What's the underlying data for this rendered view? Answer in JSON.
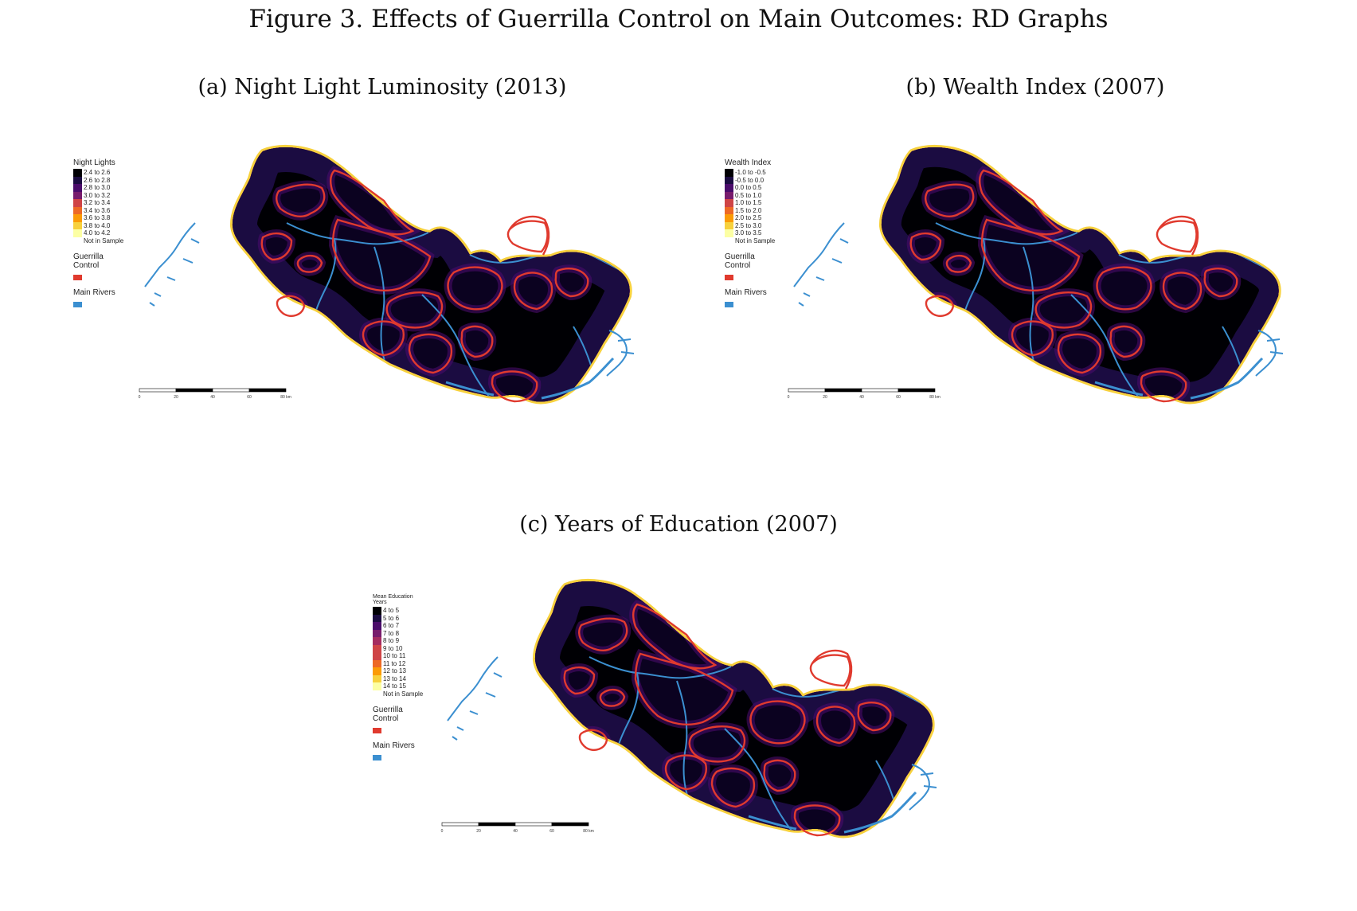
{
  "figure_title": "Figure 3. Effects of Guerrilla Control on Main Outcomes: RD Graphs",
  "colors": {
    "ramp": [
      "#000004",
      "#1b0c41",
      "#4a0c6b",
      "#781c6d",
      "#a52c60",
      "#cf4446",
      "#ed6925",
      "#fb9b06",
      "#f7d13d",
      "#fcffa4"
    ],
    "guerrilla": "#e03a2e",
    "rivers": "#3b8fd0",
    "not_in_sample": "#ffffff"
  },
  "panels": [
    {
      "title": "(a) Night Light Luminosity (2013)",
      "legend": {
        "title": "Night Lights",
        "classes": [
          "2.4 to 2.6",
          "2.6 to 2.8",
          "2.8 to 3.0",
          "3.0 to 3.2",
          "3.2 to 3.4",
          "3.4 to 3.6",
          "3.6 to 3.8",
          "3.8 to 4.0",
          "4.0 to 4.2",
          "Not in Sample"
        ],
        "guerrilla_label": "Guerrilla Control",
        "rivers_label": "Main Rivers"
      },
      "scale_bar": [
        "0",
        "20",
        "40",
        "60",
        "80 km"
      ]
    },
    {
      "title": "(b) Wealth Index (2007)",
      "legend": {
        "title": "Wealth Index",
        "classes": [
          "-1.0 to -0.5",
          "-0.5 to 0.0",
          "0.0 to 0.5",
          "0.5 to 1.0",
          "1.0 to 1.5",
          "1.5 to 2.0",
          "2.0 to 2.5",
          "2.5 to 3.0",
          "3.0 to 3.5",
          "Not in Sample"
        ],
        "guerrilla_label": "Guerrilla Control",
        "rivers_label": "Main Rivers"
      },
      "scale_bar": [
        "0",
        "20",
        "40",
        "60",
        "80 km"
      ]
    },
    {
      "title": "(c) Years of Education (2007)",
      "legend": {
        "title": "Mean Education Years",
        "classes": [
          "4 to 5",
          "5 to 6",
          "6 to 7",
          "7 to 8",
          "8 to 9",
          "9 to 10",
          "10 to 11",
          "11 to 12",
          "12 to 13",
          "13 to 14",
          "14 to 15",
          "Not in Sample"
        ],
        "guerrilla_label": "Guerrilla Control",
        "rivers_label": "Main Rivers"
      },
      "scale_bar": [
        "0",
        "20",
        "40",
        "60",
        "80 km"
      ]
    }
  ]
}
